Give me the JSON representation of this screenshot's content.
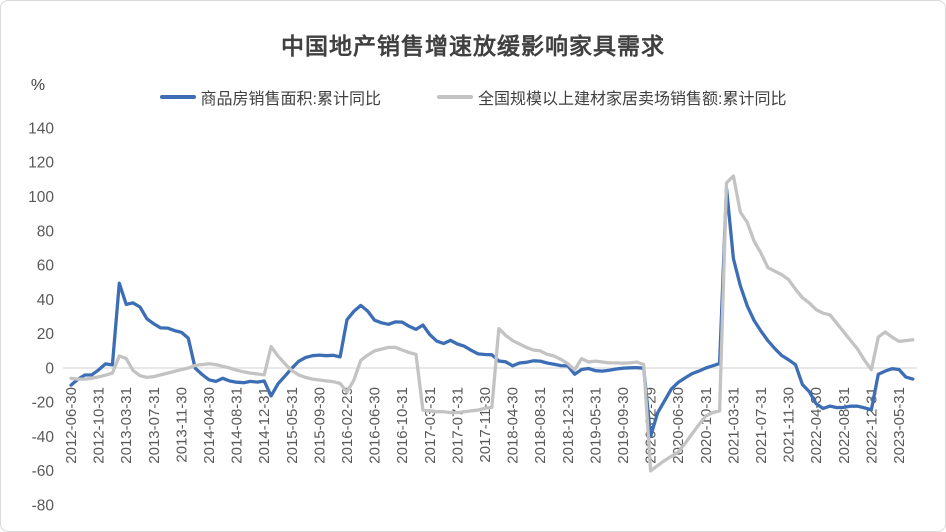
{
  "chart": {
    "title": "中国地产销售增速放缓影响家具需求",
    "unit_label": "%",
    "colors": {
      "series1": "#3d6eb5",
      "series2": "#c3c3c3",
      "gridline": "#d9d9d9",
      "tick_text": "#595959",
      "title_text": "#404040",
      "frame_border": "#d9d9d9",
      "background": "#ffffff"
    }
  },
  "chart_data": {
    "type": "line",
    "title": "中国地产销售增速放缓影响家具需求",
    "xlabel": "",
    "ylabel": "%",
    "ylim": [
      -80,
      140
    ],
    "yticks": [
      140,
      120,
      100,
      80,
      60,
      40,
      20,
      0,
      -20,
      -40,
      -60,
      -80
    ],
    "grid": "zero-line-only",
    "legend_position": "top-center",
    "x_label_every_n_points": 4,
    "x_labels_rotated_degrees": 90,
    "x": [
      "2012-06-30",
      "2012-07-31",
      "2012-08-31",
      "2012-09-30",
      "2012-10-31",
      "2012-11-30",
      "2012-12-31",
      "2013-02-28",
      "2013-03-31",
      "2013-04-30",
      "2013-05-31",
      "2013-06-30",
      "2013-07-31",
      "2013-08-31",
      "2013-09-30",
      "2013-10-31",
      "2013-11-30",
      "2013-12-31",
      "2014-02-28",
      "2014-03-31",
      "2014-04-30",
      "2014-05-31",
      "2014-06-30",
      "2014-07-31",
      "2014-08-31",
      "2014-09-30",
      "2014-10-31",
      "2014-11-30",
      "2014-12-31",
      "2015-02-28",
      "2015-03-31",
      "2015-04-30",
      "2015-05-31",
      "2015-06-30",
      "2015-07-31",
      "2015-08-31",
      "2015-09-30",
      "2015-10-31",
      "2015-11-30",
      "2015-12-31",
      "2016-02-29",
      "2016-03-31",
      "2016-04-30",
      "2016-05-31",
      "2016-06-30",
      "2016-07-31",
      "2016-08-31",
      "2016-09-30",
      "2016-10-31",
      "2016-11-30",
      "2016-12-31",
      "2017-02-28",
      "2017-03-31",
      "2017-04-30",
      "2017-05-31",
      "2017-06-30",
      "2017-07-31",
      "2017-08-31",
      "2017-09-30",
      "2017-10-31",
      "2017-11-30",
      "2017-12-31",
      "2018-02-28",
      "2018-03-31",
      "2018-04-30",
      "2018-05-31",
      "2018-06-30",
      "2018-07-31",
      "2018-08-31",
      "2018-09-30",
      "2018-10-31",
      "2018-11-30",
      "2018-12-31",
      "2019-02-28",
      "2019-03-31",
      "2019-04-30",
      "2019-05-31",
      "2019-06-30",
      "2019-07-31",
      "2019-08-31",
      "2019-09-30",
      "2019-10-31",
      "2019-11-30",
      "2019-12-31",
      "2020-02-29",
      "2020-03-31",
      "2020-04-30",
      "2020-05-31",
      "2020-06-30",
      "2020-07-31",
      "2020-08-31",
      "2020-09-30",
      "2020-10-31",
      "2020-11-30",
      "2020-12-31",
      "2021-02-28",
      "2021-03-31",
      "2021-04-30",
      "2021-05-31",
      "2021-06-30",
      "2021-07-31",
      "2021-08-31",
      "2021-09-30",
      "2021-10-31",
      "2021-11-30",
      "2021-12-31",
      "2022-02-28",
      "2022-03-31",
      "2022-04-30",
      "2022-05-31",
      "2022-06-30",
      "2022-07-31",
      "2022-08-31",
      "2022-09-30",
      "2022-10-31",
      "2022-11-30",
      "2022-12-31",
      "2023-02-28",
      "2023-03-31",
      "2023-04-30",
      "2023-05-31",
      "2023-06-30",
      "2023-07-31"
    ],
    "series": [
      {
        "name": "商品房销售面积:累计同比",
        "color": "#3d6eb5",
        "values": [
          -10.0,
          -6.6,
          -4.1,
          -4.0,
          -1.1,
          2.4,
          1.8,
          49.5,
          37.1,
          38.0,
          35.6,
          28.7,
          25.8,
          23.4,
          23.3,
          21.8,
          20.8,
          17.3,
          -0.1,
          -3.8,
          -6.9,
          -7.8,
          -6.0,
          -7.6,
          -8.3,
          -8.6,
          -7.8,
          -8.2,
          -7.6,
          -16.3,
          -9.2,
          -4.8,
          -0.2,
          3.9,
          6.1,
          7.2,
          7.5,
          7.2,
          7.4,
          6.5,
          28.2,
          33.1,
          36.5,
          33.2,
          27.9,
          26.4,
          25.5,
          26.9,
          26.8,
          24.3,
          22.5,
          25.1,
          19.5,
          15.7,
          14.3,
          16.1,
          14.0,
          12.7,
          10.3,
          8.2,
          7.9,
          7.7,
          4.1,
          3.6,
          1.3,
          2.9,
          3.3,
          4.2,
          4.0,
          2.9,
          2.2,
          1.4,
          1.3,
          -3.6,
          -0.9,
          -0.3,
          -1.6,
          -1.8,
          -1.3,
          -0.6,
          -0.1,
          0.1,
          0.2,
          -0.1,
          -39.9,
          -26.3,
          -19.3,
          -12.3,
          -8.4,
          -5.8,
          -3.3,
          -1.8,
          0.0,
          1.3,
          2.6,
          104.9,
          63.8,
          48.1,
          36.3,
          27.7,
          21.5,
          15.9,
          11.3,
          7.3,
          4.8,
          1.9,
          -9.6,
          -13.8,
          -20.9,
          -23.6,
          -22.2,
          -23.1,
          -23.0,
          -22.2,
          -22.3,
          -23.3,
          -24.3,
          -3.6,
          -1.8,
          -0.4,
          -0.9,
          -5.3,
          -6.5
        ]
      },
      {
        "name": "全国规模以上建材家居卖场销售额:累计同比",
        "color": "#c3c3c3",
        "values": [
          -6.0,
          -6.5,
          -6.5,
          -6.0,
          -5.2,
          -4.2,
          -3.0,
          7.0,
          5.5,
          -1.5,
          -4.5,
          -5.5,
          -5.0,
          -4.0,
          -3.0,
          -2.0,
          -1.0,
          0.0,
          1.5,
          2.0,
          2.5,
          2.0,
          1.0,
          0.0,
          -1.3,
          -2.2,
          -3.0,
          -3.5,
          -4.0,
          12.5,
          7.0,
          2.5,
          -1.5,
          -4.0,
          -5.5,
          -6.5,
          -7.0,
          -7.5,
          -8.0,
          -9.0,
          -14.0,
          -7.0,
          4.5,
          7.5,
          10.0,
          11.0,
          12.0,
          12.0,
          10.5,
          9.0,
          8.0,
          -24.5,
          -25.0,
          -25.5,
          -25.5,
          -26.0,
          -26.0,
          -25.5,
          -25.0,
          -24.5,
          -23.5,
          -23.0,
          23.0,
          19.0,
          16.0,
          14.0,
          12.0,
          10.5,
          10.0,
          8.0,
          7.0,
          5.0,
          2.5,
          -1.0,
          5.5,
          3.5,
          4.0,
          3.5,
          3.0,
          3.0,
          2.8,
          3.0,
          3.5,
          2.0,
          -60.0,
          -57.0,
          -54.0,
          -51.5,
          -49.0,
          -44.0,
          -38.5,
          -33.0,
          -28.0,
          -26.0,
          -25.0,
          108.0,
          112.0,
          91.0,
          85.0,
          74.0,
          67.0,
          58.5,
          56.5,
          54.5,
          51.5,
          46.0,
          41.0,
          38.0,
          34.0,
          32.0,
          31.0,
          26.0,
          21.0,
          16.0,
          11.0,
          4.5,
          -1.0,
          18.0,
          21.0,
          18.0,
          15.5,
          16.0,
          16.5
        ]
      }
    ]
  }
}
